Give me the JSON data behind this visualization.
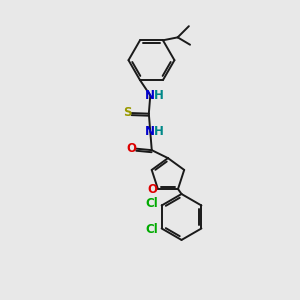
{
  "background_color": "#e8e8e8",
  "bond_color": "#1a1a1a",
  "bond_width": 1.4,
  "atom_colors": {
    "N": "#0000cc",
    "H": "#008888",
    "S": "#999900",
    "O": "#dd0000",
    "Cl": "#00aa00",
    "C": "#1a1a1a"
  },
  "figsize": [
    3.0,
    3.0
  ],
  "dpi": 100
}
